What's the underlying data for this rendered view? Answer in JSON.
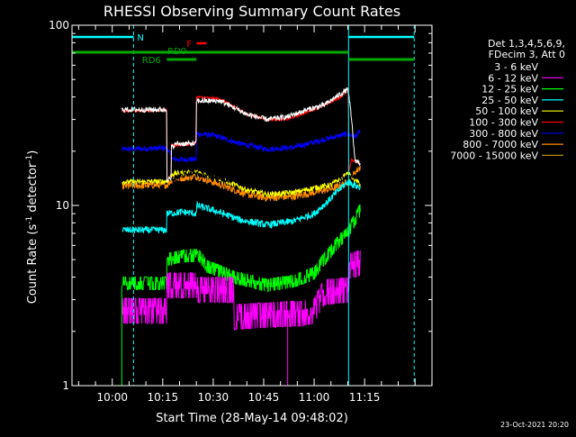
{
  "chart_data": {
    "type": "line",
    "title": "RHESSI Observing Summary Count Rates",
    "xlabel": "Start Time (28-May-14 09:48:02)",
    "ylabel_main": "Count Rate (s",
    "ylabel_sup1": "-1",
    "ylabel_mid": " detector",
    "ylabel_sup2": "-1",
    "ylabel_end": ")",
    "y_scale": "log",
    "ylim": [
      1,
      100
    ],
    "xlim_minutes_since_start": [
      0,
      107
    ],
    "x_ticks": [
      {
        "label": "10:00",
        "t": 11.97
      },
      {
        "label": "10:15",
        "t": 26.97
      },
      {
        "label": "10:30",
        "t": 41.97
      },
      {
        "label": "10:45",
        "t": 56.97
      },
      {
        "label": "11:00",
        "t": 71.97
      },
      {
        "label": "11:15",
        "t": 86.97
      }
    ],
    "y_ticks": [
      {
        "label": "1",
        "v": 1
      },
      {
        "label": "10",
        "v": 10
      },
      {
        "label": "100",
        "v": 100
      }
    ],
    "legend": {
      "placement": "right",
      "header": [
        "Det 1,3,4,5,6,9,",
        "FDecim 3, Att 0"
      ],
      "entries": [
        {
          "label": "3 - 6 keV",
          "color": "#ffffff"
        },
        {
          "label": "6 - 12 keV",
          "color": "#ff00ff"
        },
        {
          "label": "12 - 25 keV",
          "color": "#00ff00"
        },
        {
          "label": "25 - 50 keV",
          "color": "#00ffff"
        },
        {
          "label": "50 - 100 keV",
          "color": "#ffff00"
        },
        {
          "label": "100 - 300 keV",
          "color": "#ff0000"
        },
        {
          "label": "300 - 800 keV",
          "color": "#0000ff"
        },
        {
          "label": "800 - 7000 keV",
          "color": "#ff8c00"
        },
        {
          "label": "7000 - 15000 keV",
          "color": "#b8860b"
        }
      ]
    },
    "night_marks": [
      {
        "label": "N",
        "start": 0,
        "end": 18.3,
        "color": "#00ffff"
      },
      {
        "label": "",
        "start": 82.2,
        "end": 101.7,
        "color": "#00ffff"
      }
    ],
    "saa_lines": [
      18.3,
      101.7
    ],
    "decimation_bars": [
      {
        "label": "RD6",
        "color": "#00aa00",
        "segments": [
          [
            0,
            20.6
          ],
          [
            21.6,
            37
          ],
          [
            37,
            82.2
          ],
          [
            82.2,
            101.7
          ]
        ]
      },
      {
        "label": "RD0",
        "color": "#00aa00",
        "segments": [
          [
            20.6,
            37
          ]
        ]
      }
    ],
    "flare_flag": {
      "label": "F",
      "start": 37,
      "end": 40,
      "color": "#ff0000"
    },
    "data_gap_before": 14.8,
    "data_end": 85.8,
    "series": [
      {
        "name": "3 - 6 keV",
        "color": "#ffffff",
        "points": [
          [
            14.8,
            34
          ],
          [
            28.2,
            34
          ],
          [
            28.2,
            14
          ],
          [
            29.5,
            14
          ],
          [
            29.5,
            21
          ],
          [
            31,
            22
          ],
          [
            37,
            22
          ],
          [
            37,
            38
          ],
          [
            44,
            38
          ],
          [
            52,
            32
          ],
          [
            58,
            30
          ],
          [
            64,
            31
          ],
          [
            70,
            34
          ],
          [
            75,
            36
          ],
          [
            82,
            44
          ],
          [
            84,
            18
          ],
          [
            85.8,
            17
          ]
        ]
      },
      {
        "name": "3 - 6 keV",
        "color": "#000000",
        "points": [
          [
            14.8,
            14.4
          ],
          [
            28.2,
            14.5
          ],
          [
            30,
            14
          ],
          [
            34,
            15
          ],
          [
            37,
            15
          ],
          [
            44,
            14
          ],
          [
            52,
            13.5
          ],
          [
            60,
            14
          ],
          [
            68,
            14.2
          ],
          [
            76,
            14.5
          ],
          [
            82,
            14.3
          ],
          [
            85.8,
            14.5
          ]
        ]
      },
      {
        "name": "6 - 12 keV",
        "color": "#ff00ff",
        "points": [
          [
            15,
            2.6
          ],
          [
            28.2,
            2.6
          ],
          [
            28.2,
            3.6
          ],
          [
            37,
            3.6
          ],
          [
            37,
            3.4
          ],
          [
            48,
            3.4
          ],
          [
            48,
            2.4
          ],
          [
            64,
            2.5
          ],
          [
            68,
            2.5
          ],
          [
            72,
            2.6
          ],
          [
            75,
            3.3
          ],
          [
            82,
            3.4
          ],
          [
            82.5,
            4.6
          ],
          [
            85.8,
            4.8
          ]
        ]
      },
      {
        "name": "12 - 25 keV",
        "color": "#00ff00",
        "points": [
          [
            15,
            3.7
          ],
          [
            28.2,
            3.7
          ],
          [
            28.2,
            5.0
          ],
          [
            32,
            5.2
          ],
          [
            37,
            5.3
          ],
          [
            37,
            5.5
          ],
          [
            40,
            4.6
          ],
          [
            48,
            4.0
          ],
          [
            58,
            3.6
          ],
          [
            66,
            3.8
          ],
          [
            72,
            4.2
          ],
          [
            76,
            5.3
          ],
          [
            80,
            6.5
          ],
          [
            82,
            7.0
          ],
          [
            85.8,
            9.5
          ]
        ]
      },
      {
        "name": "25 - 50 keV",
        "color": "#00ffff",
        "points": [
          [
            15,
            7.3
          ],
          [
            28.2,
            7.3
          ],
          [
            28.2,
            9.0
          ],
          [
            33,
            9.2
          ],
          [
            37,
            9.0
          ],
          [
            37,
            10.0
          ],
          [
            42,
            9.4
          ],
          [
            50,
            8.3
          ],
          [
            58,
            7.8
          ],
          [
            66,
            8.2
          ],
          [
            72,
            9.0
          ],
          [
            76,
            10.5
          ],
          [
            80,
            12.5
          ],
          [
            82,
            13.5
          ],
          [
            85.8,
            12.5
          ]
        ]
      },
      {
        "name": "50 - 100 keV",
        "color": "#ffff00",
        "points": [
          [
            15,
            13.5
          ],
          [
            28.2,
            13.6
          ],
          [
            30,
            15
          ],
          [
            37,
            15.2
          ],
          [
            44,
            14
          ],
          [
            52,
            12.2
          ],
          [
            58,
            11.5
          ],
          [
            66,
            11.8
          ],
          [
            72,
            12.5
          ],
          [
            77,
            13
          ],
          [
            82,
            15
          ],
          [
            85.8,
            13
          ]
        ]
      },
      {
        "name": "100 - 300 keV",
        "color": "#ff0000",
        "points": [
          [
            14.8,
            33.5
          ],
          [
            28.2,
            33.8
          ],
          [
            28.2,
            14.2
          ],
          [
            29.5,
            14.5
          ],
          [
            29.5,
            21.5
          ],
          [
            36.8,
            22
          ],
          [
            37,
            40
          ],
          [
            44,
            39
          ],
          [
            52,
            32
          ],
          [
            58,
            30
          ],
          [
            64,
            30
          ],
          [
            70,
            33
          ],
          [
            75,
            36
          ],
          [
            80,
            40
          ],
          [
            82,
            44
          ],
          [
            82.3,
            15
          ],
          [
            83,
            18
          ],
          [
            85.8,
            17
          ]
        ]
      },
      {
        "name": "300 - 800 keV",
        "color": "#0000ff",
        "points": [
          [
            14.8,
            20.5
          ],
          [
            28.2,
            20.8
          ],
          [
            30,
            18
          ],
          [
            37,
            18
          ],
          [
            37,
            25
          ],
          [
            42,
            24.5
          ],
          [
            50,
            22
          ],
          [
            58,
            20.5
          ],
          [
            66,
            21
          ],
          [
            72,
            22.5
          ],
          [
            78,
            24
          ],
          [
            82,
            25
          ],
          [
            84,
            24
          ],
          [
            85.8,
            26
          ]
        ]
      },
      {
        "name": "800 - 7000 keV",
        "color": "#ff8c00",
        "points": [
          [
            14.8,
            12.8
          ],
          [
            28.2,
            13
          ],
          [
            30,
            14
          ],
          [
            37,
            14.5
          ],
          [
            44,
            13
          ],
          [
            52,
            11.5
          ],
          [
            58,
            11
          ],
          [
            66,
            11.2
          ],
          [
            72,
            11.8
          ],
          [
            78,
            12.5
          ],
          [
            82,
            13.5
          ],
          [
            85.8,
            16.5
          ]
        ]
      },
      {
        "name": "7000 - 15000 keV",
        "color": "#b8860b",
        "points": [
          [
            15,
            13.2
          ],
          [
            28.2,
            13.3
          ],
          [
            37,
            14
          ],
          [
            44,
            13
          ],
          [
            52,
            11.8
          ],
          [
            58,
            11.5
          ],
          [
            66,
            11.8
          ],
          [
            72,
            12.2
          ],
          [
            78,
            12.8
          ],
          [
            82,
            14
          ],
          [
            85.8,
            15
          ]
        ]
      }
    ],
    "footer_date": "23-Oct-2021 20:20"
  }
}
